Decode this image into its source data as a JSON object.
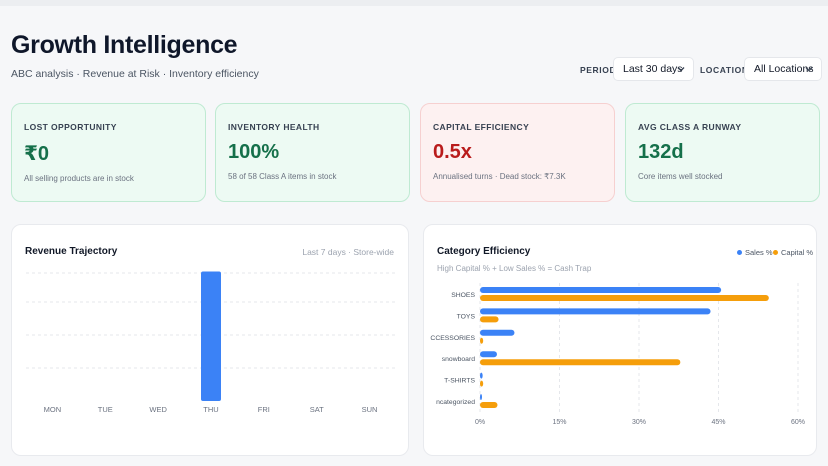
{
  "header": {
    "title": "Growth Intelligence",
    "subtitle": "ABC analysis · Revenue at Risk · Inventory efficiency"
  },
  "filters": {
    "period_label": "PERIOD",
    "period_value": "Last 30 days",
    "location_label": "LOCATION",
    "location_value": "All Locations"
  },
  "kpis": [
    {
      "label": "LOST OPPORTUNITY",
      "value": "₹0",
      "note": "All selling products are in stock",
      "tone": "green"
    },
    {
      "label": "INVENTORY HEALTH",
      "value": "100%",
      "note": "58 of 58 Class A items in stock",
      "tone": "green"
    },
    {
      "label": "CAPITAL EFFICIENCY",
      "value": "0.5x",
      "note": "Annualised turns · Dead stock: ₹7.3K",
      "tone": "red"
    },
    {
      "label": "AVG CLASS A RUNWAY",
      "value": "132d",
      "note": "Core items well stocked",
      "tone": "green"
    }
  ],
  "revenue_panel": {
    "title": "Revenue Trajectory",
    "meta": "Last 7 days · Store-wide"
  },
  "category_panel": {
    "title": "Category Efficiency",
    "subtitle": "High Capital % + Low Sales % = Cash Trap",
    "legend_sales": "Sales %",
    "legend_capital": "Capital %"
  },
  "colors": {
    "sales": "#3b82f6",
    "capital": "#f59e0b",
    "bar": "#3b82f6",
    "grid": "#e5e7eb"
  },
  "chart_data": [
    {
      "type": "bar",
      "title": "Revenue Trajectory",
      "categories": [
        "MON",
        "TUE",
        "WED",
        "THU",
        "FRI",
        "SAT",
        "SUN"
      ],
      "values": [
        0,
        0,
        0,
        1,
        0,
        0,
        0
      ],
      "ylim": [
        0,
        1.05
      ],
      "grid": true
    },
    {
      "type": "bar",
      "orientation": "horizontal",
      "title": "Category Efficiency",
      "categories": [
        "SHOES",
        "TOYS",
        "ACCESSORIES",
        "snowboard",
        "T-SHIRTS",
        "Uncategorized"
      ],
      "category_display": [
        "SHOES",
        "TOYS",
        "CCESSORIES",
        "snowboard",
        "T-SHIRTS",
        "ncategorized"
      ],
      "series": [
        {
          "name": "Sales %",
          "values": [
            45.5,
            43.5,
            6.5,
            3.2,
            0.5,
            0.3
          ]
        },
        {
          "name": "Capital %",
          "values": [
            54.5,
            3.5,
            0.6,
            37.8,
            0.6,
            3.3
          ]
        }
      ],
      "x_ticks": [
        "0%",
        "15%",
        "30%",
        "45%",
        "60%"
      ],
      "xlim": [
        0,
        60
      ],
      "legend": "top-right",
      "grid": true
    }
  ]
}
